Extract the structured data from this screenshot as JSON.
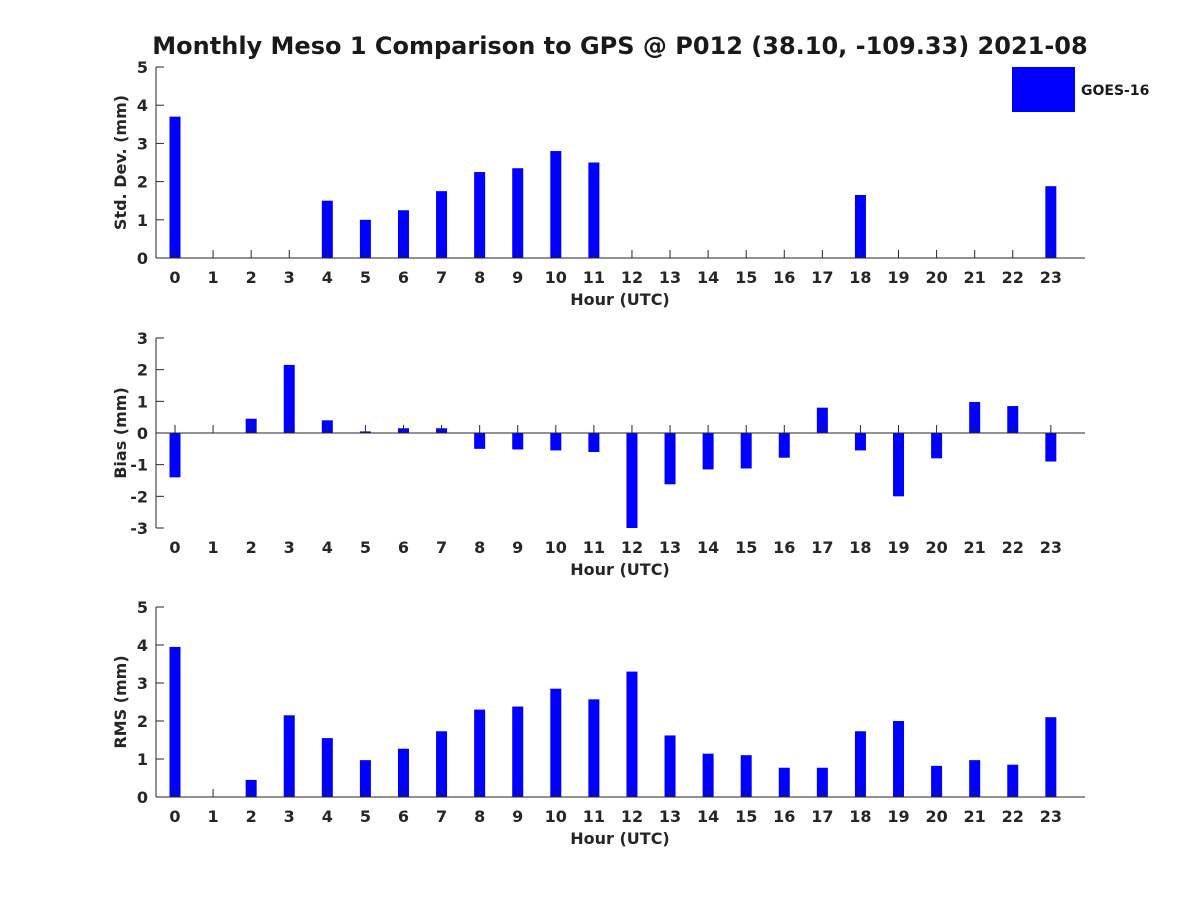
{
  "chart_data": {
    "type": "bar",
    "title": "Monthly Meso 1 Comparison to GPS @ P012 (38.10, -109.33) 2021-08",
    "legend": {
      "label": "GOES-16",
      "position": "top-right"
    },
    "color": "#0000ff",
    "categories": [
      "0",
      "1",
      "2",
      "3",
      "4",
      "5",
      "6",
      "7",
      "8",
      "9",
      "10",
      "11",
      "12",
      "13",
      "14",
      "15",
      "16",
      "17",
      "18",
      "19",
      "20",
      "21",
      "22",
      "23"
    ],
    "panels": [
      {
        "id": "std",
        "ylabel": "Std. Dev. (mm)",
        "xlabel": "Hour (UTC)",
        "ylim": [
          0,
          5
        ],
        "yticks": [
          0,
          1,
          2,
          3,
          4,
          5
        ],
        "values": [
          3.7,
          null,
          null,
          null,
          1.5,
          1.0,
          1.25,
          1.75,
          2.25,
          2.35,
          2.8,
          2.5,
          null,
          null,
          null,
          null,
          null,
          null,
          1.65,
          null,
          null,
          null,
          null,
          1.88
        ]
      },
      {
        "id": "bias",
        "ylabel": "Bias (mm)",
        "xlabel": "Hour (UTC)",
        "ylim": [
          -3,
          3
        ],
        "yticks": [
          -3,
          -2,
          -1,
          0,
          1,
          2,
          3
        ],
        "values": [
          -1.4,
          null,
          0.45,
          2.15,
          0.4,
          0.05,
          0.15,
          0.15,
          -0.5,
          -0.52,
          -0.55,
          -0.6,
          -3.0,
          -1.62,
          -1.15,
          -1.12,
          -0.78,
          0.8,
          -0.55,
          -2.0,
          -0.8,
          0.98,
          0.85,
          -0.9
        ]
      },
      {
        "id": "rms",
        "ylabel": "RMS (mm)",
        "xlabel": "Hour (UTC)",
        "ylim": [
          0,
          5
        ],
        "yticks": [
          0,
          1,
          2,
          3,
          4,
          5
        ],
        "values": [
          3.95,
          null,
          0.45,
          2.15,
          1.55,
          0.97,
          1.27,
          1.73,
          2.3,
          2.38,
          2.85,
          2.57,
          3.3,
          1.62,
          1.14,
          1.1,
          0.77,
          0.77,
          1.73,
          2.0,
          0.82,
          0.97,
          0.85,
          2.1
        ]
      }
    ]
  }
}
